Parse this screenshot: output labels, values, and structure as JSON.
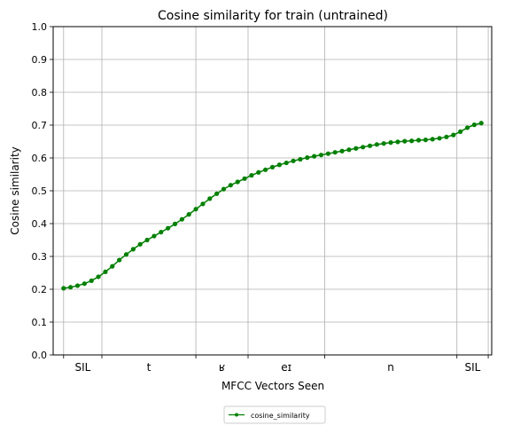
{
  "chart_data": {
    "type": "line",
    "title": "Cosine similarity for train (untrained)",
    "xlabel": "MFCC Vectors Seen",
    "ylabel": "Cosine similarity",
    "ylim": [
      0,
      1
    ],
    "yticks": [
      "0.0",
      "0.1",
      "0.2",
      "0.3",
      "0.4",
      "0.5",
      "0.6",
      "0.7",
      "0.8",
      "0.9",
      "1.0"
    ],
    "xlim": [
      -1.5,
      61.5
    ],
    "boundaries": [
      0,
      5.5,
      19,
      26.5,
      37.5,
      56.5,
      61
    ],
    "segments": [
      {
        "label": "SIL",
        "center": 2.75
      },
      {
        "label": "t",
        "center": 12.25
      },
      {
        "label": "ʁ",
        "center": 22.75
      },
      {
        "label": "eɪ",
        "center": 32
      },
      {
        "label": "n",
        "center": 47
      },
      {
        "label": "SIL",
        "center": 58.75
      }
    ],
    "grid": true,
    "legend": {
      "position": "bottom-center"
    },
    "series": [
      {
        "name": "cosine_similarity",
        "color": "#008000",
        "values": [
          0.203,
          0.206,
          0.211,
          0.217,
          0.226,
          0.238,
          0.253,
          0.27,
          0.289,
          0.306,
          0.322,
          0.337,
          0.35,
          0.362,
          0.374,
          0.386,
          0.399,
          0.413,
          0.428,
          0.444,
          0.46,
          0.476,
          0.491,
          0.505,
          0.517,
          0.527,
          0.537,
          0.547,
          0.556,
          0.564,
          0.572,
          0.579,
          0.585,
          0.591,
          0.596,
          0.601,
          0.605,
          0.609,
          0.613,
          0.617,
          0.621,
          0.625,
          0.629,
          0.633,
          0.637,
          0.641,
          0.644,
          0.647,
          0.649,
          0.651,
          0.652,
          0.654,
          0.655,
          0.657,
          0.66,
          0.664,
          0.67,
          0.68,
          0.692,
          0.701,
          0.706
        ]
      }
    ]
  }
}
